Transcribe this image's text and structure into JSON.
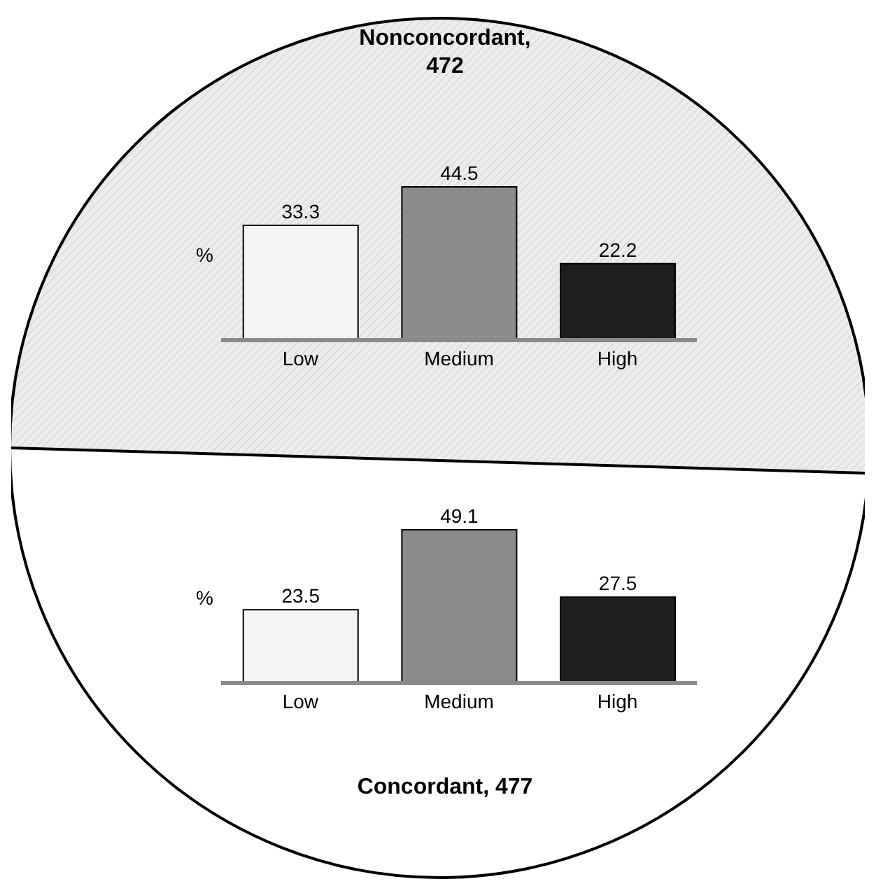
{
  "chart_data": [
    {
      "type": "bar",
      "title": "Nonconcordant, 472",
      "ylabel": "%",
      "categories": [
        "Low",
        "Medium",
        "High"
      ],
      "values": [
        33.3,
        44.5,
        22.2
      ],
      "colors": [
        "#f4f4f4",
        "#8c8c8c",
        "#1e1e1e"
      ],
      "data_labels": true
    },
    {
      "type": "bar",
      "title": "Concordant, 477",
      "ylabel": "%",
      "categories": [
        "Low",
        "Medium",
        "High"
      ],
      "values": [
        23.5,
        49.1,
        27.5
      ],
      "colors": [
        "#f4f4f4",
        "#8c8c8c",
        "#1e1e1e"
      ],
      "data_labels": true
    }
  ]
}
